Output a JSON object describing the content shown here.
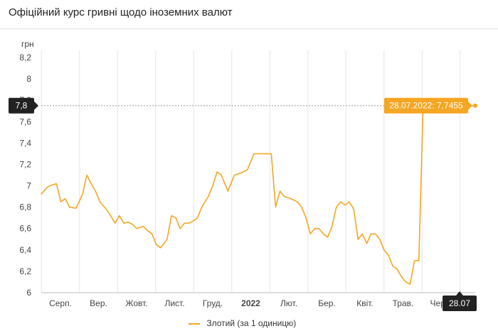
{
  "page": {
    "title": "Офіційний курс гривні щодо іноземних валют"
  },
  "colors": {
    "series": "#f5a623",
    "grid": "#e6e6e6",
    "tooltip_bg": "#f5a623",
    "marker_bg": "#222222"
  },
  "chart_data": {
    "type": "line",
    "ylabel": "грн",
    "ylim": [
      6,
      8.2
    ],
    "y_ticks": [
      "6",
      "6,2",
      "6,4",
      "6,6",
      "6,8",
      "7",
      "7,2",
      "7,4",
      "7,6",
      "7,8",
      "8",
      "8,2"
    ],
    "x_ticks": [
      "Серп.",
      "Вер.",
      "Жовт.",
      "Лист.",
      "Груд.",
      "2022",
      "Лют.",
      "Бер.",
      "Квіт.",
      "Трав.",
      "Черв."
    ],
    "x_marker": "28.07",
    "y_marker": "7,8",
    "tooltip": "28.07.2022: 7,7455",
    "legend": [
      "Злотий (за 1 одиницю)"
    ],
    "series": [
      {
        "name": "Злотий (за 1 одиницю)",
        "x": [
          0,
          0.012,
          0.02,
          0.035,
          0.045,
          0.055,
          0.065,
          0.08,
          0.095,
          0.105,
          0.115,
          0.125,
          0.135,
          0.15,
          0.16,
          0.17,
          0.18,
          0.19,
          0.2,
          0.21,
          0.22,
          0.235,
          0.245,
          0.255,
          0.265,
          0.275,
          0.29,
          0.3,
          0.31,
          0.32,
          0.33,
          0.34,
          0.35,
          0.36,
          0.37,
          0.385,
          0.395,
          0.405,
          0.415,
          0.43,
          0.445,
          0.46,
          0.475,
          0.49,
          0.5,
          0.51,
          0.52,
          0.53,
          0.54,
          0.55,
          0.56,
          0.575,
          0.59,
          0.6,
          0.61,
          0.62,
          0.63,
          0.64,
          0.65,
          0.66,
          0.67,
          0.68,
          0.69,
          0.7,
          0.71,
          0.72,
          0.73,
          0.74,
          0.75,
          0.76,
          0.77,
          0.78,
          0.79,
          0.8,
          0.81,
          0.82,
          0.83,
          0.84,
          0.85,
          0.86,
          0.87,
          0.88,
          0.89,
          0.9,
          0.91,
          0.92,
          0.93,
          0.94,
          0.95,
          0.96,
          0.97,
          0.975,
          0.98,
          0.985,
          0.99,
          1
        ],
        "y": [
          6.92,
          6.98,
          7.0,
          7.02,
          6.85,
          6.88,
          6.8,
          6.79,
          6.92,
          7.1,
          7.02,
          6.95,
          6.85,
          6.78,
          6.72,
          6.65,
          6.72,
          6.65,
          6.66,
          6.64,
          6.6,
          6.62,
          6.58,
          6.55,
          6.45,
          6.42,
          6.5,
          6.72,
          6.7,
          6.6,
          6.65,
          6.65,
          6.67,
          6.7,
          6.8,
          6.9,
          7.0,
          7.13,
          7.1,
          6.95,
          7.1,
          7.12,
          7.15,
          7.3,
          7.3,
          7.3,
          7.3,
          7.3,
          6.8,
          6.95,
          6.9,
          6.88,
          6.85,
          6.8,
          6.7,
          6.55,
          6.6,
          6.6,
          6.55,
          6.52,
          6.62,
          6.8,
          6.85,
          6.82,
          6.85,
          6.78,
          6.5,
          6.55,
          6.46,
          6.55,
          6.55,
          6.5,
          6.4,
          6.35,
          6.25,
          6.22,
          6.15,
          6.1,
          6.08,
          6.3,
          6.3,
          7.75,
          7.75,
          7.75,
          7.75,
          7.75,
          7.75,
          7.75,
          7.75,
          7.75,
          7.75,
          7.75,
          7.75,
          7.75,
          7.75,
          7.75
        ]
      }
    ]
  }
}
